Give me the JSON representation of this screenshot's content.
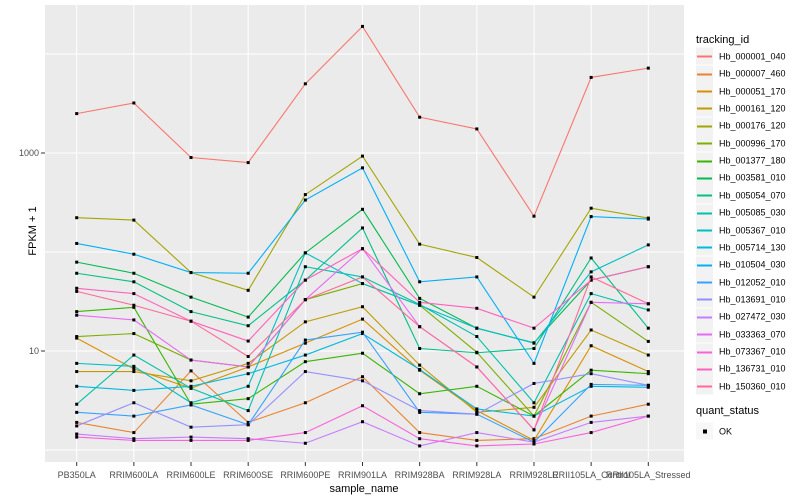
{
  "chart_data": {
    "type": "line",
    "title": "",
    "xlabel": "sample_name",
    "ylabel": "FPKM + 1",
    "y_scale": "log10",
    "y_axis_ticks": [
      "10",
      "1000"
    ],
    "y_gridline_values": [
      1,
      10,
      100,
      1000,
      10000
    ],
    "ylim": [
      0.76,
      31000
    ],
    "legend_position": "right",
    "grid": true,
    "marker_shape": "filled-square",
    "marker_color": "#000000",
    "legend_title": "tracking_id",
    "quant_legend_title": "quant_status",
    "quant_status_value": "OK",
    "categories": [
      "PB350LA",
      "RRIM600LA",
      "RRIM600LE",
      "RRIM600SE",
      "RRIM600PE",
      "RRIM901LA",
      "RRIM928BA",
      "RRIM928LA",
      "RRIM928LE",
      "RRII105LA_Control",
      "RRII105LA_Stressed"
    ],
    "series": [
      {
        "name": "Hb_000001_040",
        "color": "#F8766D",
        "values": [
          2500,
          3200,
          900,
          800,
          5000,
          19000,
          2300,
          1750,
          230,
          5800,
          7200
        ]
      },
      {
        "name": "Hb_000007_460",
        "color": "#EA8331",
        "values": [
          1.9,
          1.5,
          6.3,
          1.9,
          3.0,
          5.5,
          1.5,
          1.25,
          1.3,
          2.2,
          2.9
        ]
      },
      {
        "name": "Hb_000051_170",
        "color": "#D89000",
        "values": [
          13.5,
          6.6,
          4.2,
          6.9,
          12,
          21,
          6.4,
          2.5,
          1.25,
          11.3,
          6.2
        ]
      },
      {
        "name": "Hb_000161_120",
        "color": "#C09B00",
        "values": [
          6.2,
          6.2,
          5.0,
          7.5,
          19.7,
          28,
          7.2,
          2.4,
          2.7,
          16.3,
          9.1
        ]
      },
      {
        "name": "Hb_000176_120",
        "color": "#A3A500",
        "values": [
          222,
          210,
          62,
          41,
          380,
          930,
          120,
          88,
          35,
          277,
          220
        ]
      },
      {
        "name": "Hb_000996_170",
        "color": "#7CAE00",
        "values": [
          14,
          15,
          8.1,
          6.9,
          33,
          48,
          29,
          9.7,
          2.2,
          31,
          12.5
        ]
      },
      {
        "name": "Hb_001377_180",
        "color": "#39B600",
        "values": [
          25,
          27.6,
          2.9,
          3.3,
          7.8,
          9.5,
          3.7,
          4.4,
          2.2,
          6.4,
          5.9
        ]
      },
      {
        "name": "Hb_003581_010",
        "color": "#00BB4E",
        "values": [
          79,
          61,
          35,
          22,
          98,
          270,
          34,
          17,
          12.1,
          52,
          71
        ]
      },
      {
        "name": "Hb_005054_070",
        "color": "#00C087",
        "values": [
          61,
          50,
          25,
          18,
          52,
          175,
          10.6,
          9.6,
          10.6,
          87,
          17
        ]
      },
      {
        "name": "Hb_005085_030",
        "color": "#00C1AB",
        "values": [
          2.9,
          9.1,
          4.2,
          2.5,
          71,
          56,
          29.5,
          14,
          3.0,
          38,
          26
        ]
      },
      {
        "name": "Hb_005367_010",
        "color": "#00BFC4",
        "values": [
          7.5,
          7.0,
          3.0,
          4.4,
          98,
          48,
          29,
          17,
          12,
          63,
          118
        ]
      },
      {
        "name": "Hb_005714_130",
        "color": "#00BAE0",
        "values": [
          4.4,
          4.0,
          4.4,
          5.9,
          9.1,
          15,
          6.5,
          2.6,
          2.2,
          4.4,
          4.3
        ]
      },
      {
        "name": "Hb_010504_030",
        "color": "#00B0F6",
        "values": [
          122,
          95,
          62,
          61,
          335,
          708,
          50,
          56,
          7.5,
          228,
          215
        ]
      },
      {
        "name": "Hb_012052_010",
        "color": "#35A2FF",
        "values": [
          2.4,
          2.2,
          2.85,
          1.8,
          12.9,
          15.5,
          2.4,
          2.3,
          1.2,
          4.6,
          4.5
        ]
      },
      {
        "name": "Hb_013691_010",
        "color": "#9590FF",
        "values": [
          1.75,
          3.0,
          1.7,
          1.8,
          6.2,
          5.0,
          2.5,
          2.3,
          4.7,
          5.9,
          4.5
        ]
      },
      {
        "name": "Hb_027472_030",
        "color": "#C77CFF",
        "values": [
          1.45,
          1.3,
          1.35,
          1.3,
          1.17,
          1.93,
          1.1,
          1.5,
          1.2,
          1.9,
          2.2
        ]
      },
      {
        "name": "Hb_033363_070",
        "color": "#E76BF3",
        "values": [
          23,
          20.6,
          8.1,
          6.9,
          33,
          108,
          17.6,
          6.9,
          1.6,
          31,
          30
        ]
      },
      {
        "name": "Hb_073367_010",
        "color": "#FA62DB",
        "values": [
          1.35,
          1.25,
          1.25,
          1.25,
          1.5,
          2.8,
          1.3,
          1.1,
          1.15,
          1.5,
          2.2
        ]
      },
      {
        "name": "Hb_136731_010",
        "color": "#FF62BC",
        "values": [
          43,
          38,
          20,
          12.6,
          52,
          108,
          31,
          27,
          17,
          52,
          71
        ]
      },
      {
        "name": "Hb_150360_010",
        "color": "#FF6A98",
        "values": [
          40,
          29,
          20,
          8.8,
          33,
          56,
          17.6,
          6.9,
          1.6,
          56,
          30
        ]
      }
    ],
    "style_colors": {
      "panel_background": "#EBEBEB",
      "gridline": "#FFFFFF",
      "axis_text": "#4D4D4D",
      "tick_mark": "#333333",
      "legend_key_background": "#F2F2F2"
    }
  }
}
